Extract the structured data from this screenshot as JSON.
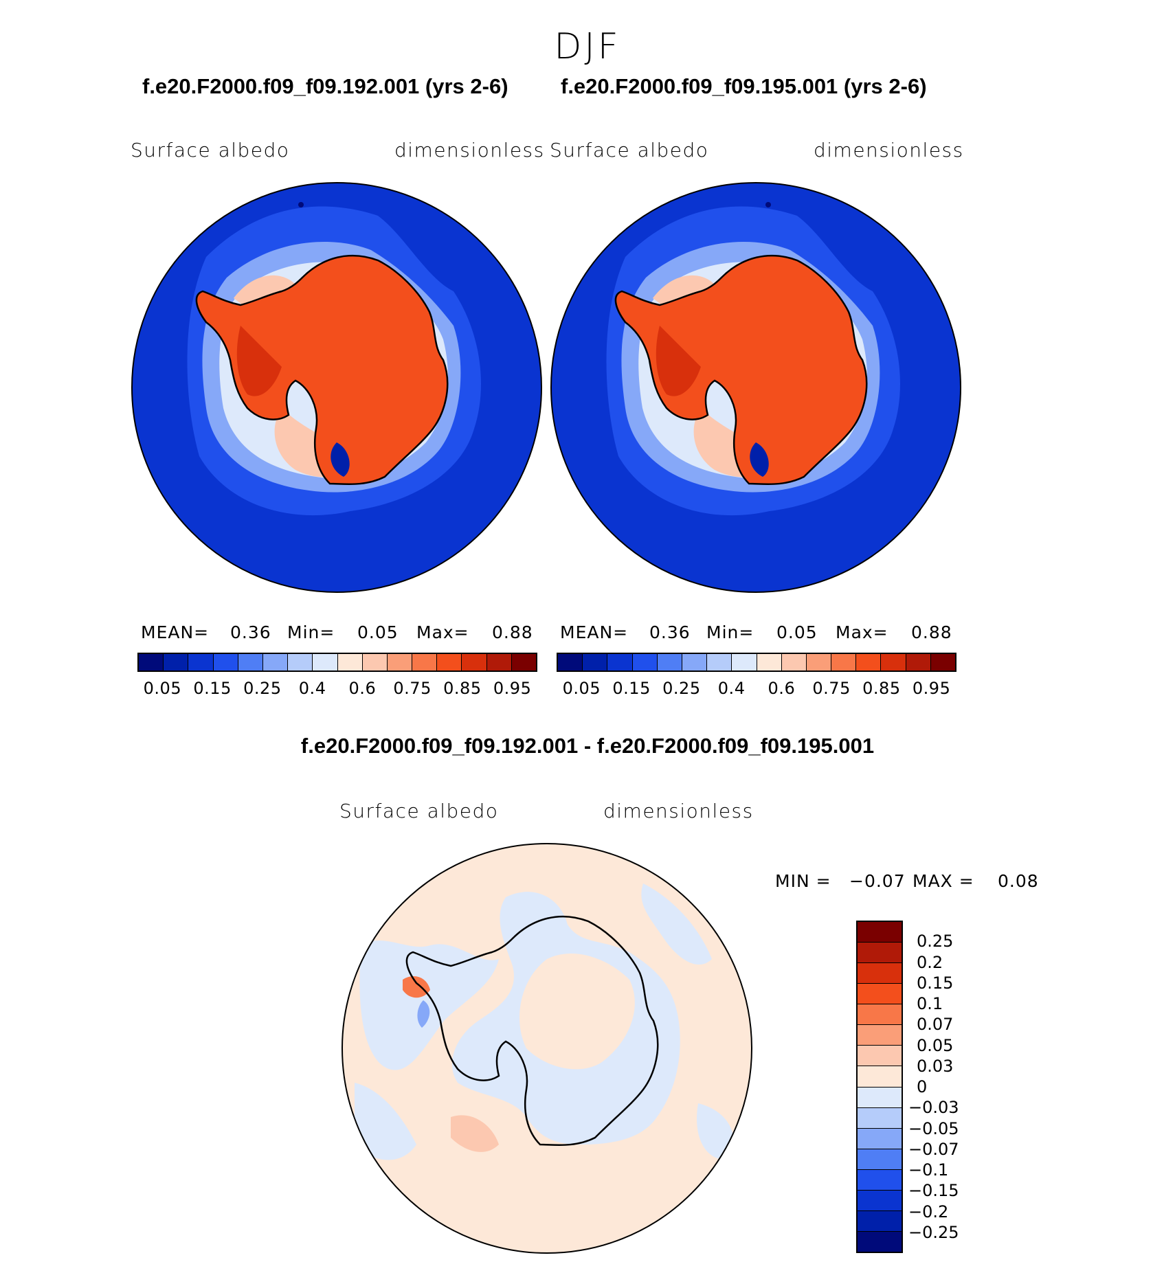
{
  "figure": {
    "title": "DJF"
  },
  "panels": [
    {
      "case": "f.e20.F2000.f09_f09.192.001 (yrs 2-6)",
      "variable": "Surface albedo",
      "units": "dimensionless",
      "stats": {
        "mean_label": "MEAN=",
        "mean": "0.36",
        "min_label": "Min=",
        "min": "0.05",
        "max_label": "Max=",
        "max": "0.88"
      }
    },
    {
      "case": "f.e20.F2000.f09_f09.195.001 (yrs 2-6)",
      "variable": "Surface albedo",
      "units": "dimensionless",
      "stats": {
        "mean_label": "MEAN=",
        "mean": "0.36",
        "min_label": "Min=",
        "min": "0.05",
        "max_label": "Max=",
        "max": "0.88"
      }
    }
  ],
  "colorbar": {
    "colors": [
      "#000a7a",
      "#0020aa",
      "#0a34d0",
      "#2050ec",
      "#4f7ef5",
      "#86a8f8",
      "#b5ccfa",
      "#dde9fb",
      "#fde8d8",
      "#fcc8b0",
      "#fa9e78",
      "#f87748",
      "#f34f1c",
      "#d8300c",
      "#b01a08",
      "#7a0000"
    ],
    "tick_labels": [
      "0.05",
      "0.15",
      "0.25",
      "0.4",
      "0.6",
      "0.75",
      "0.85",
      "0.95"
    ]
  },
  "difference": {
    "title": "f.e20.F2000.f09_f09.192.001 - f.e20.F2000.f09_f09.195.001",
    "variable": "Surface albedo",
    "units": "dimensionless",
    "min_label": "MIN =",
    "min": "−0.07",
    "max_label": "MAX =",
    "max": "0.08",
    "colorbar": {
      "colors": [
        "#7a0000",
        "#b01a08",
        "#d8300c",
        "#f34f1c",
        "#f87748",
        "#fa9e78",
        "#fcc8b0",
        "#fde8d8",
        "#dde9fb",
        "#b5ccfa",
        "#86a8f8",
        "#4f7ef5",
        "#2050ec",
        "#0a34d0",
        "#0020aa",
        "#000a7a"
      ],
      "tick_labels": [
        "0.25",
        "0.2",
        "0.15",
        "0.1",
        "0.07",
        "0.05",
        "0.03",
        "0",
        "−0.03",
        "−0.05",
        "−0.07",
        "−0.1",
        "−0.15",
        "−0.2",
        "−0.25"
      ]
    }
  }
}
